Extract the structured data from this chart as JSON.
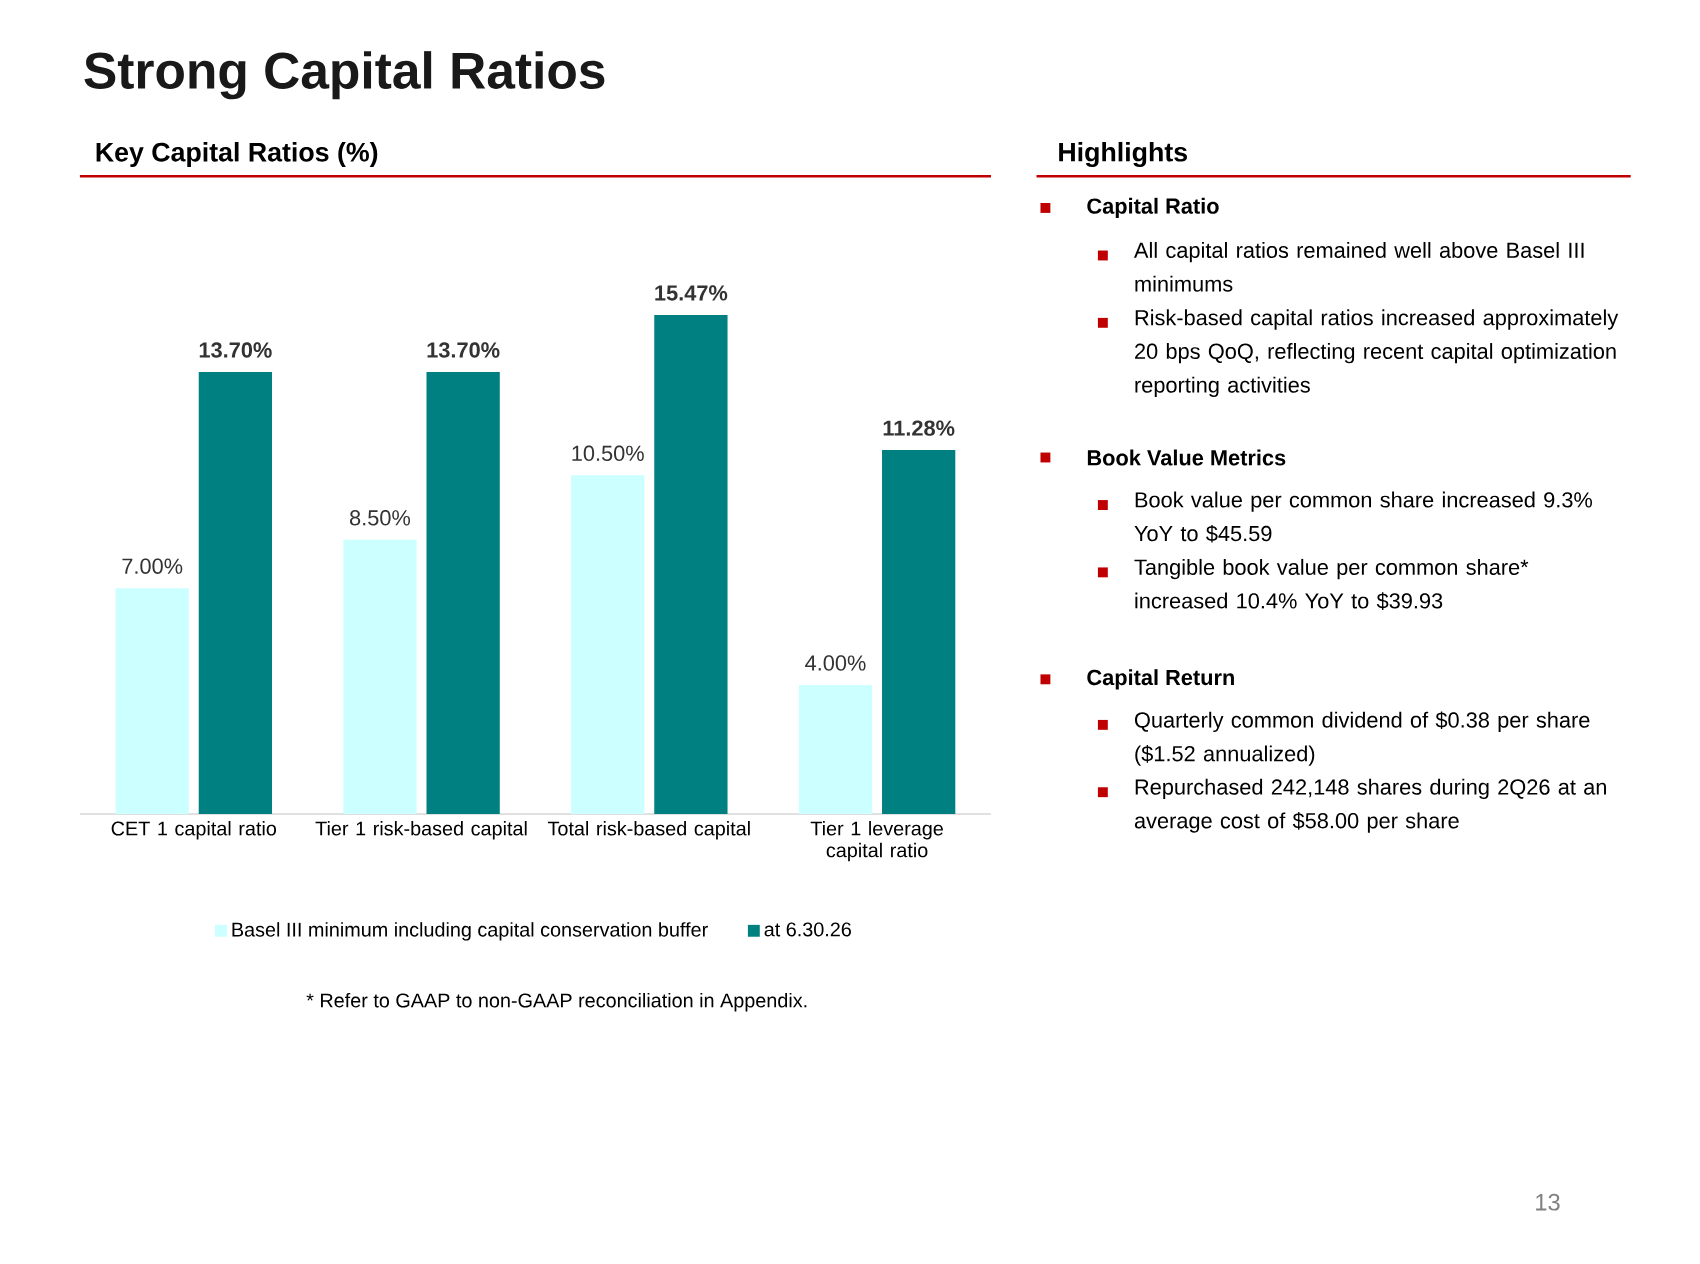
{
  "chart_data": {
    "type": "bar",
    "title": "Strong Capital Ratios",
    "subtitle": "Key Capital Ratios (%)",
    "categories": [
      "CET 1 capital ratio",
      "Tier 1 risk-based capital",
      "Total risk-based capital",
      "Tier 1 leverage capital ratio"
    ],
    "series": [
      {
        "name": "Basel III minimum including capital conservation buffer",
        "color": "#ccffff",
        "values": [
          7.0,
          8.5,
          10.5,
          4.0
        ],
        "value_labels": [
          "7.00%",
          "8.50%",
          "10.50%",
          "4.00%"
        ]
      },
      {
        "name": "at 6.30.26",
        "color": "#008080",
        "values": [
          13.7,
          13.7,
          15.47,
          11.28
        ],
        "value_labels": [
          "13.70%",
          "13.70%",
          "15.47%",
          "11.28%"
        ]
      }
    ],
    "legend": "bottom",
    "grid": false,
    "annotations": [
      "Highlights",
      "Capital Ratio",
      "All capital ratios remained well above Basel III minimums",
      "Risk-based capital ratios increased approximately 20 bps QoQ, reflecting recent capital optimization reporting activities",
      "Book Value Metrics",
      "Book value per common share increased 9.3% YoY to $45.59",
      "Tangible book value per common share* increased 10.4% YoY to $39.93",
      "Capital Return",
      "Quarterly common dividend of $0.38 per share ($1.52 annualized)",
      "Repurchased 242,148 shares during 2Q26 at an average cost of $58.00 per share",
      "* Refer to GAAP to non-GAAP reconciliation in Appendix.",
      "13"
    ]
  }
}
